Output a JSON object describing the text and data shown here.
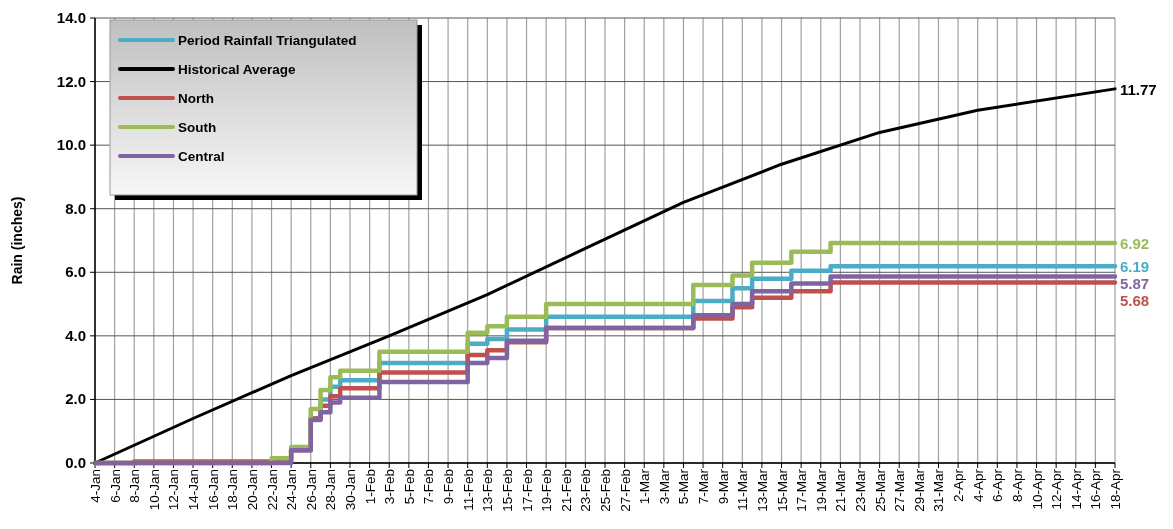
{
  "chart_data": {
    "type": "step",
    "ylabel": "Rain (inches)",
    "xlim": [
      "--01-04",
      "--04-18"
    ],
    "ylim": [
      0,
      14
    ],
    "yticks": [
      {
        "value": 0,
        "label": "0.0"
      },
      {
        "value": 2,
        "label": "2.0"
      },
      {
        "value": 4,
        "label": "4.0"
      },
      {
        "value": 6,
        "label": "6.0"
      },
      {
        "value": 8,
        "label": "8.0"
      },
      {
        "value": 10,
        "label": "10.0"
      },
      {
        "value": 12,
        "label": "12.0"
      },
      {
        "value": 14,
        "label": "14.0"
      }
    ],
    "xticks": [
      {
        "value": "--01-04",
        "label": "4-Jan"
      },
      {
        "value": "--01-06",
        "label": "6-Jan"
      },
      {
        "value": "--01-08",
        "label": "8-Jan"
      },
      {
        "value": "--01-10",
        "label": "10-Jan"
      },
      {
        "value": "--01-12",
        "label": "12-Jan"
      },
      {
        "value": "--01-14",
        "label": "14-Jan"
      },
      {
        "value": "--01-16",
        "label": "16-Jan"
      },
      {
        "value": "--01-18",
        "label": "18-Jan"
      },
      {
        "value": "--01-20",
        "label": "20-Jan"
      },
      {
        "value": "--01-22",
        "label": "22-Jan"
      },
      {
        "value": "--01-24",
        "label": "24-Jan"
      },
      {
        "value": "--01-26",
        "label": "26-Jan"
      },
      {
        "value": "--01-28",
        "label": "28-Jan"
      },
      {
        "value": "--01-30",
        "label": "30-Jan"
      },
      {
        "value": "--02-01",
        "label": "1-Feb"
      },
      {
        "value": "--02-03",
        "label": "3-Feb"
      },
      {
        "value": "--02-05",
        "label": "5-Feb"
      },
      {
        "value": "--02-07",
        "label": "7-Feb"
      },
      {
        "value": "--02-09",
        "label": "9-Feb"
      },
      {
        "value": "--02-11",
        "label": "11-Feb"
      },
      {
        "value": "--02-13",
        "label": "13-Feb"
      },
      {
        "value": "--02-15",
        "label": "15-Feb"
      },
      {
        "value": "--02-17",
        "label": "17-Feb"
      },
      {
        "value": "--02-19",
        "label": "19-Feb"
      },
      {
        "value": "--02-21",
        "label": "21-Feb"
      },
      {
        "value": "--02-23",
        "label": "23-Feb"
      },
      {
        "value": "--02-25",
        "label": "25-Feb"
      },
      {
        "value": "--02-27",
        "label": "27-Feb"
      },
      {
        "value": "--03-01",
        "label": "1-Mar"
      },
      {
        "value": "--03-03",
        "label": "3-Mar"
      },
      {
        "value": "--03-05",
        "label": "5-Mar"
      },
      {
        "value": "--03-07",
        "label": "7-Mar"
      },
      {
        "value": "--03-09",
        "label": "9-Mar"
      },
      {
        "value": "--03-11",
        "label": "11-Mar"
      },
      {
        "value": "--03-13",
        "label": "13-Mar"
      },
      {
        "value": "--03-15",
        "label": "15-Mar"
      },
      {
        "value": "--03-17",
        "label": "17-Mar"
      },
      {
        "value": "--03-19",
        "label": "19-Mar"
      },
      {
        "value": "--03-21",
        "label": "21-Mar"
      },
      {
        "value": "--03-23",
        "label": "23-Mar"
      },
      {
        "value": "--03-25",
        "label": "25-Mar"
      },
      {
        "value": "--03-27",
        "label": "27-Mar"
      },
      {
        "value": "--03-29",
        "label": "29-Mar"
      },
      {
        "value": "--03-31",
        "label": "31-Mar"
      },
      {
        "value": "--04-02",
        "label": "2-Apr"
      },
      {
        "value": "--04-04",
        "label": "4-Apr"
      },
      {
        "value": "--04-06",
        "label": "6-Apr"
      },
      {
        "value": "--04-08",
        "label": "8-Apr"
      },
      {
        "value": "--04-10",
        "label": "10-Apr"
      },
      {
        "value": "--04-12",
        "label": "12-Apr"
      },
      {
        "value": "--04-14",
        "label": "14-Apr"
      },
      {
        "value": "--04-16",
        "label": "16-Apr"
      },
      {
        "value": "--04-18",
        "label": "18-Apr"
      }
    ],
    "grid": true,
    "legend": "top left",
    "line_style": "solid",
    "marker": "none",
    "series": [
      {
        "name": "Period Rainfall Triangulated",
        "color": "#4bacc6",
        "x": [
          "--01-26",
          "--01-27",
          "--01-28",
          "--01-29",
          "--02-02",
          "--02-11",
          "--02-13",
          "--02-15",
          "--02-19",
          "--03-06",
          "--03-10",
          "--03-12",
          "--03-16",
          "--03-20",
          "--04-18"
        ],
        "values": [
          1.4,
          2.0,
          2.4,
          2.6,
          3.15,
          3.75,
          3.9,
          4.2,
          4.6,
          5.1,
          5.5,
          5.8,
          6.05,
          6.19,
          6.19
        ],
        "value_labels": [
          null,
          null,
          null,
          null,
          null,
          null,
          null,
          null,
          null,
          null,
          null,
          null,
          null,
          null,
          "6.19"
        ]
      },
      {
        "name": "Historical Average",
        "color": "#000000",
        "type": "line",
        "x": [
          "--01-04",
          "--01-14",
          "--01-24",
          "--02-03",
          "--02-13",
          "--02-23",
          "--03-05",
          "--03-15",
          "--03-25",
          "--04-04",
          "--04-18"
        ],
        "values": [
          0,
          1.4,
          2.75,
          4.0,
          5.3,
          6.75,
          8.2,
          9.4,
          10.4,
          11.1,
          11.77
        ],
        "value_labels": [
          null,
          null,
          null,
          null,
          null,
          null,
          null,
          null,
          null,
          null,
          "11.77"
        ]
      },
      {
        "name": "North",
        "color": "#c0504d",
        "x": [
          "--01-04",
          "--01-08",
          "--01-24",
          "--01-26",
          "--01-27",
          "--01-28",
          "--01-29",
          "--02-02",
          "--02-11",
          "--02-13",
          "--02-15",
          "--02-19",
          "--03-06",
          "--03-10",
          "--03-12",
          "--03-16",
          "--03-20",
          "--04-18"
        ],
        "values": [
          0,
          0.05,
          0.4,
          1.4,
          1.8,
          2.1,
          2.35,
          2.85,
          3.4,
          3.55,
          3.8,
          4.25,
          4.55,
          4.9,
          5.2,
          5.4,
          5.68,
          5.68
        ],
        "value_labels": [
          null,
          null,
          null,
          null,
          null,
          null,
          null,
          null,
          null,
          null,
          null,
          null,
          null,
          null,
          null,
          null,
          null,
          "5.68"
        ]
      },
      {
        "name": "South",
        "color": "#9bbb59",
        "x": [
          "--01-04",
          "--01-22",
          "--01-24",
          "--01-26",
          "--01-27",
          "--01-28",
          "--01-29",
          "--02-02",
          "--02-11",
          "--02-13",
          "--02-15",
          "--02-19",
          "--03-06",
          "--03-10",
          "--03-12",
          "--03-16",
          "--03-20",
          "--04-18"
        ],
        "values": [
          0,
          0.15,
          0.5,
          1.7,
          2.3,
          2.7,
          2.9,
          3.5,
          4.1,
          4.3,
          4.6,
          5.0,
          5.6,
          5.9,
          6.3,
          6.65,
          6.92,
          6.92
        ],
        "value_labels": [
          null,
          null,
          null,
          null,
          null,
          null,
          null,
          null,
          null,
          null,
          null,
          null,
          null,
          null,
          null,
          null,
          null,
          "6.92"
        ]
      },
      {
        "name": "Central",
        "color": "#8064a2",
        "x": [
          "--01-04",
          "--01-24",
          "--01-26",
          "--01-27",
          "--01-28",
          "--01-29",
          "--02-02",
          "--02-11",
          "--02-13",
          "--02-15",
          "--02-19",
          "--03-06",
          "--03-10",
          "--03-12",
          "--03-16",
          "--03-20",
          "--04-18"
        ],
        "values": [
          0,
          0.4,
          1.35,
          1.6,
          1.9,
          2.05,
          2.55,
          3.15,
          3.3,
          3.85,
          4.25,
          4.65,
          5.0,
          5.4,
          5.65,
          5.87,
          5.87
        ],
        "value_labels": [
          null,
          null,
          null,
          null,
          null,
          null,
          null,
          null,
          null,
          null,
          null,
          null,
          null,
          null,
          null,
          null,
          "5.87"
        ]
      }
    ]
  }
}
